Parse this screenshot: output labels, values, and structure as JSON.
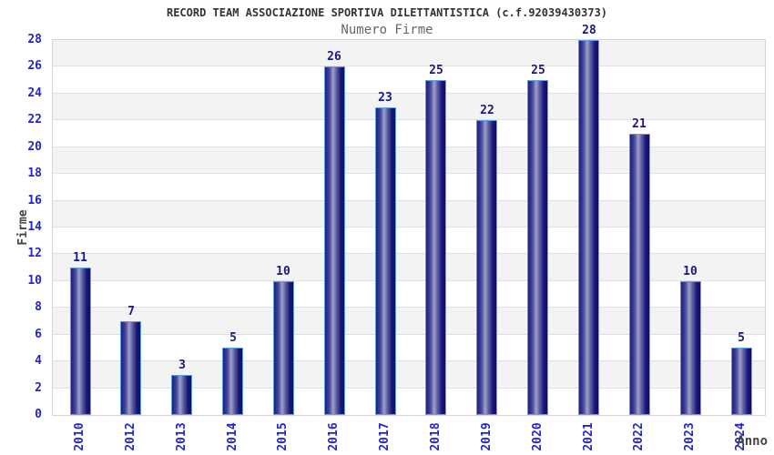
{
  "chart_data": {
    "type": "bar",
    "title": "RECORD TEAM ASSOCIAZIONE SPORTIVA DILETTANTISTICA (c.f.92039430373)",
    "subtitle": "Numero Firme",
    "xlabel": "Anno",
    "ylabel": "Firme",
    "categories": [
      "2010",
      "2012",
      "2013",
      "2014",
      "2015",
      "2016",
      "2017",
      "2018",
      "2019",
      "2020",
      "2021",
      "2022",
      "2023",
      "2024"
    ],
    "values": [
      11,
      7,
      3,
      5,
      10,
      26,
      23,
      25,
      22,
      25,
      28,
      21,
      10,
      5
    ],
    "ylim": [
      0,
      28
    ],
    "yticks": [
      0,
      2,
      4,
      6,
      8,
      10,
      12,
      14,
      16,
      18,
      20,
      22,
      24,
      26,
      28
    ],
    "grid": "horizontal gridlines with alternating shaded bands",
    "legend": "none",
    "bar_labels_shown": true,
    "colors": {
      "title": "#333333",
      "subtitle": "#666666",
      "axis_title": "#444444",
      "tick_label": "#2525cc",
      "value_label": "#191980",
      "bar_border": "#5d9ee8",
      "bar_dark": "#14147a",
      "bar_light": "#a0a0ca",
      "band": "#f3f3f3",
      "gridline": "#e0e0e0",
      "plot_border": "#d5d5d5"
    }
  }
}
